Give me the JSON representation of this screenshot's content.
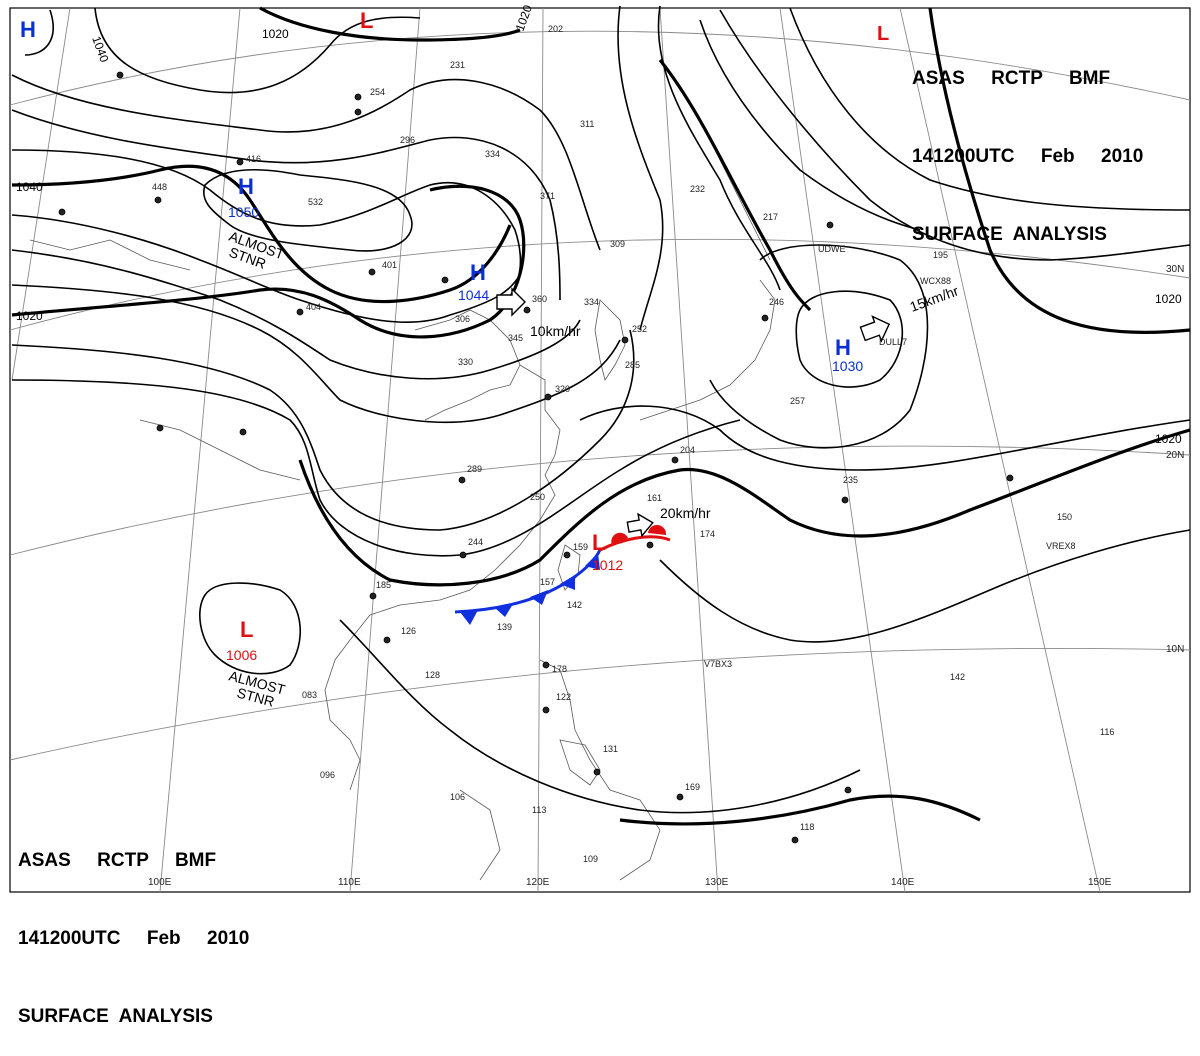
{
  "title": {
    "agency": "ASAS",
    "line1": "ASAS     RCTP     BMF",
    "line2": "141200UTC     Feb     2010",
    "line3": "SURFACE  ANALYSIS"
  },
  "pressure_centers": [
    {
      "id": "h-nw",
      "type": "H",
      "value": "",
      "color": "#0b2fd6"
    },
    {
      "id": "l-top",
      "type": "L",
      "value": "",
      "color": "#e01010"
    },
    {
      "id": "h-mongolia",
      "type": "H",
      "value": "1050",
      "color": "#0b2fd6",
      "note": "ALMOST\nSTNR"
    },
    {
      "id": "h-china",
      "type": "H",
      "value": "1044",
      "color": "#0b2fd6",
      "motion": "10km/hr"
    },
    {
      "id": "h-pacific",
      "type": "H",
      "value": "1030",
      "color": "#0b2fd6",
      "motion": "15km/hr"
    },
    {
      "id": "l-taiwan",
      "type": "L",
      "value": "1012",
      "color": "#e01010",
      "motion": "20km/hr"
    },
    {
      "id": "l-indochina",
      "type": "L",
      "value": "1006",
      "color": "#e01010",
      "note": "ALMOST\nSTNR"
    }
  ],
  "isobar_labels": [
    "1040",
    "1020",
    "1040",
    "1020",
    "1020",
    "1020",
    "1020"
  ],
  "longitude_labels": [
    "100E",
    "110E",
    "120E",
    "130E",
    "140E",
    "150E"
  ],
  "latitude_labels": [
    "30N",
    "20N",
    "10N"
  ],
  "ship_ids": [
    "UDWE",
    "WCX88",
    "DULL7",
    "VREX8",
    "V7BX3"
  ],
  "station_values": [
    "202",
    "231",
    "254",
    "296",
    "334",
    "311",
    "371",
    "309",
    "232",
    "217",
    "195",
    "448",
    "532",
    "416",
    "401",
    "404",
    "360",
    "334",
    "345",
    "252",
    "285",
    "246",
    "257",
    "330",
    "320",
    "306",
    "289",
    "250",
    "244",
    "185",
    "126",
    "139",
    "142",
    "157",
    "159",
    "161",
    "174",
    "235",
    "204",
    "150",
    "178",
    "128",
    "122",
    "106",
    "096",
    "083",
    "131",
    "169",
    "113",
    "118",
    "109",
    "116",
    "142"
  ],
  "colors": {
    "isobar": "#000000",
    "grid": "#777777",
    "coast": "#555555",
    "warm_front": "#e01010",
    "cold_front": "#1030e0"
  }
}
